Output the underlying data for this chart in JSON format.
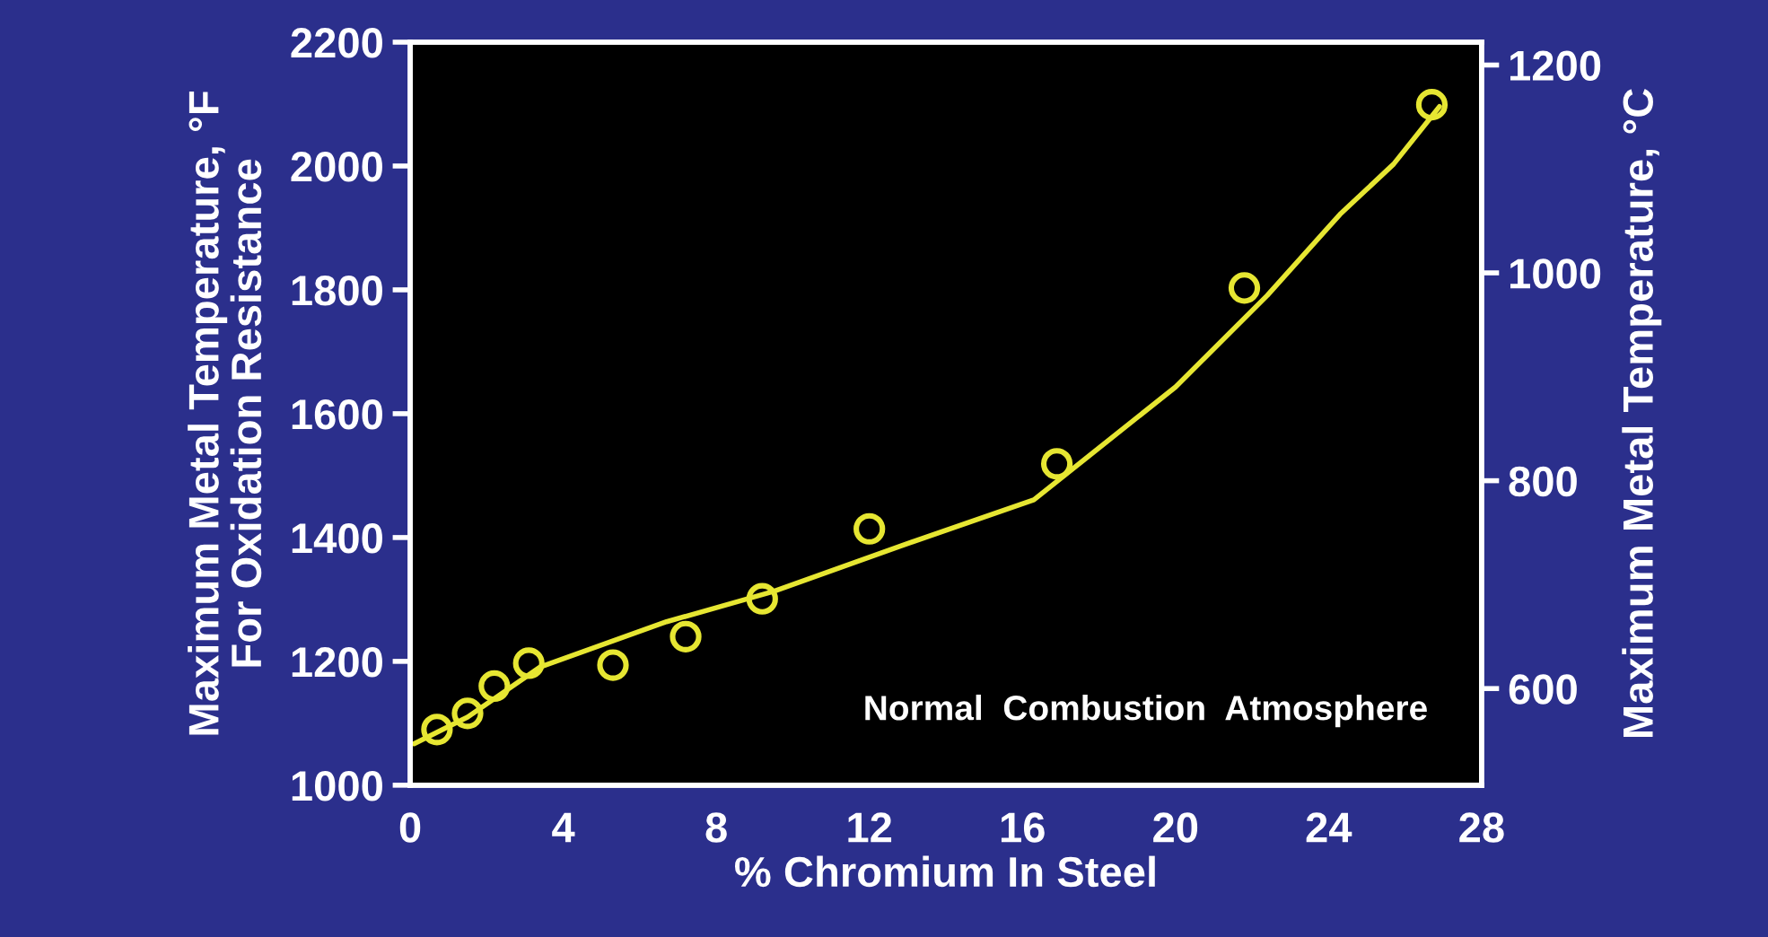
{
  "chart_data": {
    "type": "scatter",
    "xlabel": "% Chromium In Steel",
    "ylabel": "Maximum Metal Temperature, °F\nFor Oxidation Resistance",
    "y2label": "Maximum Metal Temperature, °C",
    "xlim": [
      0,
      28
    ],
    "xticks": [
      0,
      4,
      8,
      12,
      16,
      20,
      24,
      28
    ],
    "ylim": [
      1000,
      2200
    ],
    "yticks": [
      1000,
      1200,
      1400,
      1600,
      1800,
      2000,
      2200
    ],
    "y2lim": [
      507,
      1222
    ],
    "y2ticks": [
      600,
      800,
      1000,
      1200
    ],
    "grid": false,
    "annotations": [
      "Normal  Combustion  Atmosphere"
    ],
    "series": [
      {
        "marker": "circle",
        "color": "#e6e632",
        "x": [
          0.7,
          1.5,
          2.2,
          3.1,
          5.3,
          7.2,
          9.2,
          12.0,
          16.9,
          21.8,
          26.7
        ],
        "values": [
          1090,
          1116,
          1160,
          1197,
          1194,
          1240,
          1301,
          1414,
          1519,
          1803,
          2099
        ]
      },
      {
        "type": "line",
        "marker": "none",
        "color": "#e6e632",
        "x": [
          0.1,
          1.5,
          3.4,
          6.7,
          9.5,
          12.8,
          16.3,
          20,
          22.4,
          24.3,
          25.7,
          26.9
        ],
        "values": [
          1067,
          1110,
          1191,
          1264,
          1313,
          1386,
          1461,
          1643,
          1791,
          1922,
          2003,
          2096
        ]
      }
    ]
  }
}
